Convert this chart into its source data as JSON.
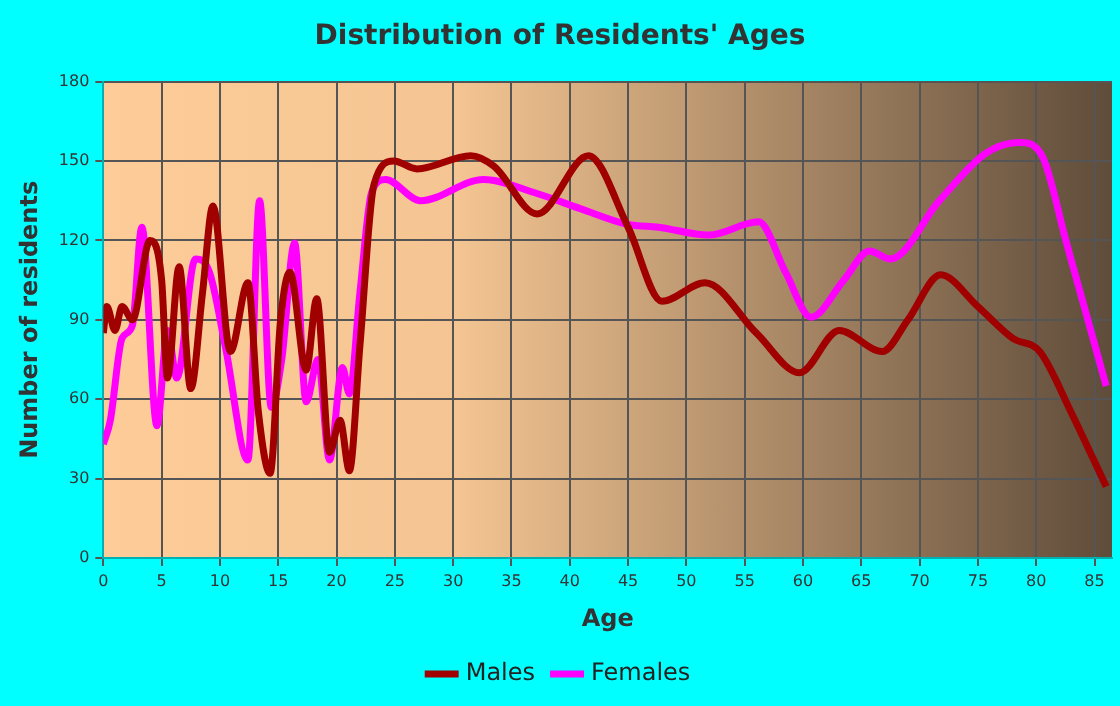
{
  "chart_data": {
    "type": "line",
    "title": "Distribution of Residents' Ages",
    "xlabel": "Age",
    "ylabel": "Number of residents",
    "xlim": [
      0,
      86.5
    ],
    "xticks": [
      0,
      5,
      10,
      15,
      20,
      25,
      30,
      35,
      40,
      45,
      50,
      55,
      60,
      65,
      70,
      75,
      80,
      85
    ],
    "ylim": [
      0,
      180
    ],
    "yticks": [
      0,
      30,
      60,
      90,
      120,
      150,
      180
    ],
    "grid": true,
    "legend": "bottom",
    "marker": "none",
    "line_style": "solid",
    "series": [
      {
        "name": "Males",
        "color": "#a00000",
        "x": [
          0,
          0.3,
          1,
          1.6,
          2.5,
          4,
          5,
          5.5,
          6.5,
          7.5,
          8.5,
          9.4,
          10.9,
          12.4,
          13.3,
          14.3,
          15.2,
          16,
          17.4,
          18.3,
          19.4,
          20.3,
          21.1,
          22,
          23.2,
          24.9,
          26.9,
          31.5,
          33.5,
          37.2,
          41.6,
          45,
          47.9,
          51.6,
          56,
          59.7,
          63.1,
          66.8,
          69,
          71.8,
          75,
          78,
          80.3,
          83,
          86
        ],
        "values": [
          85,
          95,
          86,
          95,
          90,
          120,
          105,
          68,
          110,
          64,
          100,
          133,
          78,
          104,
          55,
          32,
          90,
          108,
          71,
          98,
          40,
          52,
          33,
          80,
          141,
          150,
          147,
          152,
          148,
          130,
          152,
          125,
          97,
          104,
          85,
          70,
          86,
          78,
          90,
          107,
          95,
          83,
          78,
          55,
          27
        ]
      },
      {
        "name": "Females",
        "color": "#ff00ff",
        "x": [
          0,
          0.6,
          1.6,
          2.5,
          3.3,
          4.6,
          5.5,
          6.3,
          7.9,
          9.1,
          10.5,
          12.4,
          13.4,
          14.4,
          15.3,
          16.4,
          17.4,
          18.4,
          19.4,
          20.5,
          21.1,
          22,
          23,
          24.2,
          27.2,
          32.6,
          37,
          40.9,
          45,
          47.6,
          51.9,
          56.2,
          58.5,
          60.7,
          63.5,
          65.7,
          67.5,
          71.7,
          75.7,
          78.6,
          80.5,
          82.6,
          86
        ],
        "values": [
          43,
          52,
          83,
          88,
          125,
          50,
          86,
          68,
          113,
          108,
          79,
          37,
          135,
          57,
          75,
          119,
          59,
          75,
          37,
          72,
          62,
          100,
          138,
          143,
          135,
          143,
          138,
          132,
          126,
          125,
          122,
          127,
          108,
          91,
          105,
          116,
          113,
          135,
          153,
          157,
          152,
          119,
          65
        ]
      }
    ]
  }
}
